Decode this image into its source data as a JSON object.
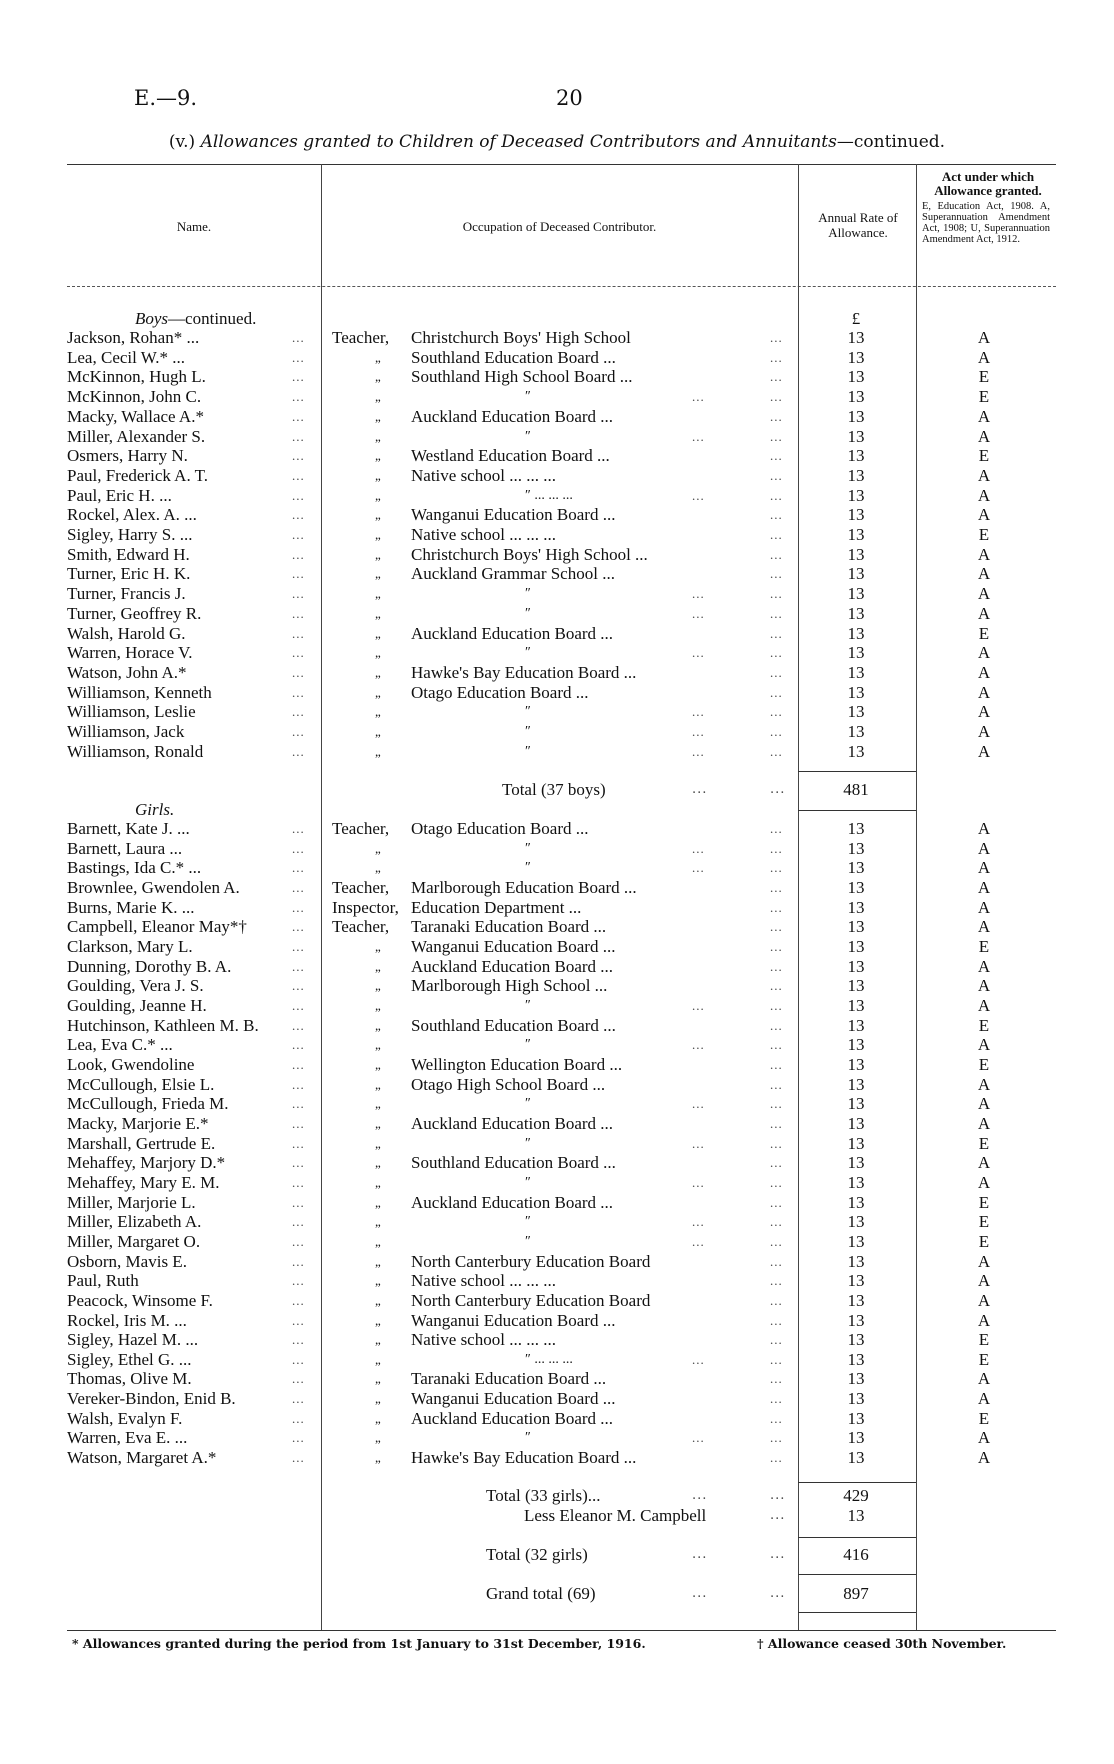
{
  "page": {
    "reference": "E.—9.",
    "number": "20"
  },
  "title": {
    "prefix": "(v.)",
    "main": "Allowances granted to Children of Deceased Contributors and Annuitants",
    "suffix": "—continued."
  },
  "columns": {
    "name": "Name.",
    "occupation": "Occupation of Deceased Contributor.",
    "rate": "Annual Rate of Allowance.",
    "act_title": "Act under which Allowance granted.",
    "act_text": "E, Education Act, 1908. A, Superannuation Amendment Act, 1908; U, Superannuation Amendment Act, 1912."
  },
  "currency_symbol": "£",
  "boys": {
    "heading": "Boys",
    "heading_suffix": "—continued.",
    "rows": [
      {
        "name": "Jackson, Rohan* ...",
        "title": "Teacher,",
        "body": "Christchurch Boys' High School",
        "rate": "13",
        "act": "A"
      },
      {
        "name": "Lea, Cecil W.* ...",
        "title": "„",
        "body": "Southland Education Board ...",
        "rate": "13",
        "act": "A"
      },
      {
        "name": "McKinnon, Hugh L.",
        "title": "„",
        "body": "Southland High School Board ...",
        "rate": "13",
        "act": "E"
      },
      {
        "name": "McKinnon, John C.",
        "title": "„",
        "body": "″",
        "rate": "13",
        "act": "E"
      },
      {
        "name": "Macky, Wallace A.*",
        "title": "„",
        "body": "Auckland Education Board ...",
        "rate": "13",
        "act": "A"
      },
      {
        "name": "Miller, Alexander S.",
        "title": "„",
        "body": "″",
        "rate": "13",
        "act": "A"
      },
      {
        "name": "Osmers, Harry N.",
        "title": "„",
        "body": "Westland Education Board ...",
        "rate": "13",
        "act": "E"
      },
      {
        "name": "Paul, Frederick A. T.",
        "title": "„",
        "body": "Native school ... ... ...",
        "rate": "13",
        "act": "A"
      },
      {
        "name": "Paul, Eric H. ...",
        "title": "„",
        "body": "″ ... ... ...",
        "rate": "13",
        "act": "A"
      },
      {
        "name": "Rockel, Alex. A. ...",
        "title": "„",
        "body": "Wanganui Education Board ...",
        "rate": "13",
        "act": "A"
      },
      {
        "name": "Sigley, Harry S. ...",
        "title": "„",
        "body": "Native school ... ... ...",
        "rate": "13",
        "act": "E"
      },
      {
        "name": "Smith, Edward H.",
        "title": "„",
        "body": "Christchurch Boys' High School ...",
        "rate": "13",
        "act": "A"
      },
      {
        "name": "Turner, Eric H. K.",
        "title": "„",
        "body": "Auckland Grammar School ...",
        "rate": "13",
        "act": "A"
      },
      {
        "name": "Turner, Francis J.",
        "title": "„",
        "body": "″",
        "rate": "13",
        "act": "A"
      },
      {
        "name": "Turner, Geoffrey R.",
        "title": "„",
        "body": "″",
        "rate": "13",
        "act": "A"
      },
      {
        "name": "Walsh, Harold G.",
        "title": "„",
        "body": "Auckland Education Board ...",
        "rate": "13",
        "act": "E"
      },
      {
        "name": "Warren, Horace V.",
        "title": "„",
        "body": "″",
        "rate": "13",
        "act": "A"
      },
      {
        "name": "Watson, John A.*",
        "title": "„",
        "body": "Hawke's Bay Education Board ...",
        "rate": "13",
        "act": "A"
      },
      {
        "name": "Williamson, Kenneth",
        "title": "„",
        "body": "Otago Education Board ...",
        "rate": "13",
        "act": "A"
      },
      {
        "name": "Williamson, Leslie",
        "title": "„",
        "body": "″",
        "rate": "13",
        "act": "A"
      },
      {
        "name": "Williamson, Jack",
        "title": "„",
        "body": "″",
        "rate": "13",
        "act": "A"
      },
      {
        "name": "Williamson, Ronald",
        "title": "„",
        "body": "″",
        "rate": "13",
        "act": "A"
      }
    ],
    "total_label": "Total (37 boys)",
    "total_value": "481"
  },
  "girls": {
    "heading": "Girls.",
    "rows": [
      {
        "name": "Barnett, Kate J. ...",
        "title": "Teacher,",
        "body": "Otago Education Board ...",
        "rate": "13",
        "act": "A"
      },
      {
        "name": "Barnett, Laura ...",
        "title": "„",
        "body": "″",
        "rate": "13",
        "act": "A"
      },
      {
        "name": "Bastings, Ida C.* ...",
        "title": "„",
        "body": "″",
        "rate": "13",
        "act": "A"
      },
      {
        "name": "Brownlee, Gwendolen A.",
        "title": "Teacher,",
        "body": "Marlborough Education Board ...",
        "rate": "13",
        "act": "A"
      },
      {
        "name": "Burns, Marie K. ...",
        "title": "Inspector,",
        "body": "Education Department ...",
        "rate": "13",
        "act": "A"
      },
      {
        "name": "Campbell, Eleanor May*†",
        "title": "Teacher,",
        "body": "Taranaki Education Board ...",
        "rate": "13",
        "act": "A"
      },
      {
        "name": "Clarkson, Mary L.",
        "title": "„",
        "body": "Wanganui Education Board ...",
        "rate": "13",
        "act": "E"
      },
      {
        "name": "Dunning, Dorothy B. A.",
        "title": "„",
        "body": "Auckland Education Board ...",
        "rate": "13",
        "act": "A"
      },
      {
        "name": "Goulding, Vera J. S.",
        "title": "„",
        "body": "Marlborough High School ...",
        "rate": "13",
        "act": "A"
      },
      {
        "name": "Goulding, Jeanne H.",
        "title": "„",
        "body": "″",
        "rate": "13",
        "act": "A"
      },
      {
        "name": "Hutchinson, Kathleen M. B.",
        "title": "„",
        "body": "Southland Education Board ...",
        "rate": "13",
        "act": "E"
      },
      {
        "name": "Lea, Eva C.* ...",
        "title": "„",
        "body": "″",
        "rate": "13",
        "act": "A"
      },
      {
        "name": "Look, Gwendoline",
        "title": "„",
        "body": "Wellington Education Board ...",
        "rate": "13",
        "act": "E"
      },
      {
        "name": "McCullough, Elsie L.",
        "title": "„",
        "body": "Otago High School Board ...",
        "rate": "13",
        "act": "A"
      },
      {
        "name": "McCullough, Frieda M.",
        "title": "„",
        "body": "″",
        "rate": "13",
        "act": "A"
      },
      {
        "name": "Macky, Marjorie E.*",
        "title": "„",
        "body": "Auckland Education Board ...",
        "rate": "13",
        "act": "A"
      },
      {
        "name": "Marshall, Gertrude E.",
        "title": "„",
        "body": "″",
        "rate": "13",
        "act": "E"
      },
      {
        "name": "Mehaffey, Marjory D.*",
        "title": "„",
        "body": "Southland Education Board ...",
        "rate": "13",
        "act": "A"
      },
      {
        "name": "Mehaffey, Mary E. M.",
        "title": "„",
        "body": "″",
        "rate": "13",
        "act": "A"
      },
      {
        "name": "Miller, Marjorie L.",
        "title": "„",
        "body": "Auckland Education Board ...",
        "rate": "13",
        "act": "E"
      },
      {
        "name": "Miller, Elizabeth A.",
        "title": "„",
        "body": "″",
        "rate": "13",
        "act": "E"
      },
      {
        "name": "Miller, Margaret O.",
        "title": "„",
        "body": "″",
        "rate": "13",
        "act": "E"
      },
      {
        "name": "Osborn, Mavis E.",
        "title": "„",
        "body": "North Canterbury Education Board",
        "rate": "13",
        "act": "A"
      },
      {
        "name": "Paul, Ruth",
        "title": "„",
        "body": "Native school ... ... ...",
        "rate": "13",
        "act": "A"
      },
      {
        "name": "Peacock, Winsome F.",
        "title": "„",
        "body": "North Canterbury Education Board",
        "rate": "13",
        "act": "A"
      },
      {
        "name": "Rockel, Iris M. ...",
        "title": "„",
        "body": "Wanganui Education Board ...",
        "rate": "13",
        "act": "A"
      },
      {
        "name": "Sigley, Hazel M. ...",
        "title": "„",
        "body": "Native school ... ... ...",
        "rate": "13",
        "act": "E"
      },
      {
        "name": "Sigley, Ethel G. ...",
        "title": "„",
        "body": "″ ... ... ...",
        "rate": "13",
        "act": "E"
      },
      {
        "name": "Thomas, Olive M.",
        "title": "„",
        "body": "Taranaki Education Board ...",
        "rate": "13",
        "act": "A"
      },
      {
        "name": "Vereker-Bindon, Enid B.",
        "title": "„",
        "body": "Wanganui Education Board ...",
        "rate": "13",
        "act": "A"
      },
      {
        "name": "Walsh, Evalyn F.",
        "title": "„",
        "body": "Auckland Education Board ...",
        "rate": "13",
        "act": "E"
      },
      {
        "name": "Warren, Eva E. ...",
        "title": "„",
        "body": "″",
        "rate": "13",
        "act": "A"
      },
      {
        "name": "Watson, Margaret A.*",
        "title": "„",
        "body": "Hawke's Bay Education Board ...",
        "rate": "13",
        "act": "A"
      }
    ],
    "subtotal_label": "Total (33 girls)...",
    "subtotal_value": "429",
    "less_label": "Less Eleanor M. Campbell",
    "less_value": "13",
    "total_label": "Total (32 girls)",
    "total_value": "416"
  },
  "grand_total": {
    "label": "Grand total (69)",
    "value": "897"
  },
  "footnotes": {
    "asterisk": "* Allowances granted during the period from 1st January to 31st December, 1916.",
    "dagger": "† Allowance ceased 30th November."
  }
}
